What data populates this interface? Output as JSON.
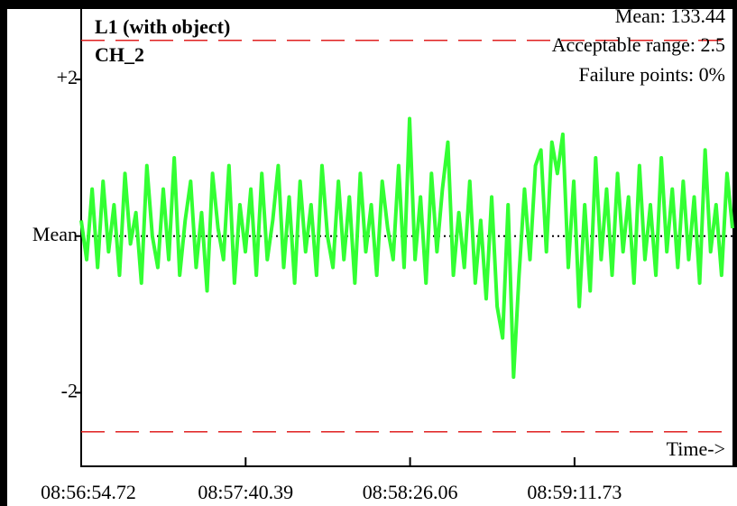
{
  "chart_data": {
    "type": "line",
    "title": "L1 (with object)",
    "subtitle": "CH_2",
    "annotations": [
      "Mean: 133.44",
      "Acceptable range: 2.5",
      "Failure points: 0%"
    ],
    "xlabel": "Time->",
    "color": "#33ff33",
    "values": [
      0.2,
      -0.3,
      0.6,
      -0.4,
      0.7,
      -0.2,
      0.4,
      -0.5,
      0.8,
      -0.1,
      0.3,
      -0.6,
      0.9,
      0.0,
      -0.4,
      0.6,
      -0.3,
      1.0,
      -0.5,
      0.2,
      0.7,
      -0.4,
      0.3,
      -0.7,
      0.8,
      0.1,
      -0.3,
      0.9,
      -0.6,
      0.4,
      -0.2,
      0.6,
      -0.5,
      0.8,
      -0.3,
      0.2,
      0.9,
      -0.4,
      0.5,
      -0.6,
      0.7,
      -0.2,
      0.4,
      -0.5,
      0.9,
      0.0,
      -0.4,
      0.7,
      -0.3,
      0.5,
      -0.6,
      0.8,
      -0.2,
      0.4,
      -0.5,
      0.7,
      0.1,
      -0.3,
      0.9,
      -0.4,
      1.5,
      -0.3,
      0.5,
      -0.6,
      0.8,
      -0.2,
      0.6,
      1.2,
      -0.5,
      0.3,
      -0.4,
      0.7,
      -0.6,
      0.2,
      -0.8,
      0.5,
      -0.9,
      -1.3,
      0.4,
      -1.8,
      -0.5,
      0.6,
      -0.3,
      0.9,
      1.1,
      -0.2,
      1.2,
      0.8,
      1.3,
      -0.4,
      0.7,
      -0.9,
      0.4,
      -0.7,
      1.0,
      -0.3,
      0.6,
      -0.5,
      0.8,
      -0.2,
      0.5,
      -0.6,
      0.9,
      -0.3,
      0.4,
      -0.5,
      1.0,
      -0.2,
      0.6,
      -0.4,
      0.7,
      -0.3,
      0.5,
      -0.6,
      1.1,
      -0.2,
      0.4,
      -0.5,
      0.8,
      0.1
    ],
    "ylim": [
      -2.94,
      2.9
    ],
    "yticks": [
      {
        "value": 2,
        "label": "+2"
      },
      {
        "value": 0,
        "label": "Mean"
      },
      {
        "value": -2,
        "label": "-2"
      }
    ],
    "xlim": [
      32214.72,
      32395.6
    ],
    "xticks": [
      {
        "value": 32214.72,
        "label": "08:56:54.72"
      },
      {
        "value": 32260.39,
        "label": "08:57:40.39"
      },
      {
        "value": 32306.06,
        "label": "08:58:26.06"
      },
      {
        "value": 32351.73,
        "label": "08:59:11.73"
      }
    ],
    "limit_lines": [
      2.5,
      -2.5
    ],
    "limit_color": "#e02020",
    "mean_line": 0
  }
}
